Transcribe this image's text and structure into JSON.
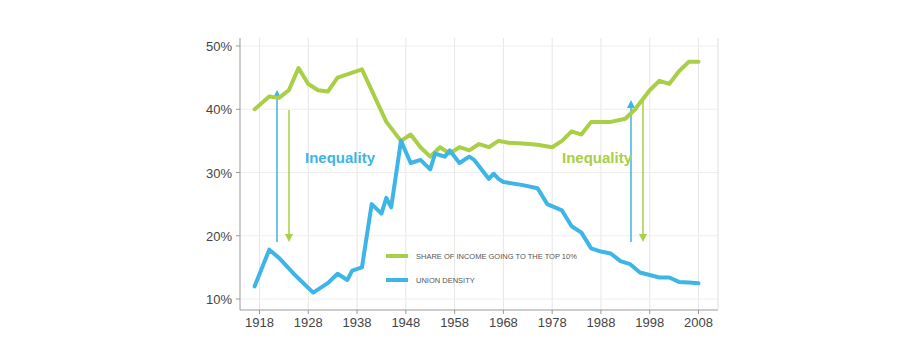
{
  "chart_data": {
    "type": "line",
    "series": [
      {
        "name": "SHARE OF INCOME GOING TO THE TOP 10%",
        "color": "#a8cf45",
        "x": [
          1917,
          1920,
          1922,
          1924,
          1926,
          1928,
          1930,
          1932,
          1934,
          1936,
          1939,
          1941,
          1944,
          1947,
          1949,
          1951,
          1953,
          1955,
          1957,
          1959,
          1961,
          1963,
          1965,
          1967,
          1969,
          1972,
          1975,
          1978,
          1980,
          1982,
          1984,
          1986,
          1990,
          1993,
          1995,
          1998,
          2000,
          2002,
          2004,
          2006,
          2008
        ],
        "values": [
          40,
          42,
          41.8,
          43,
          46.5,
          44,
          43,
          42.8,
          45,
          45.5,
          46.3,
          43,
          38,
          35,
          36,
          34,
          32.5,
          34,
          33,
          34,
          33.5,
          34.5,
          34,
          35,
          34.7,
          34.6,
          34.4,
          34,
          35,
          36.5,
          36,
          38,
          38,
          38.5,
          40,
          43,
          44.5,
          44,
          46,
          47.5,
          47.5
        ]
      },
      {
        "name": "UNION DENSITY",
        "color": "#3db5e6",
        "x": [
          1917,
          1920,
          1922,
          1925,
          1929,
          1932,
          1934,
          1936,
          1937,
          1939,
          1941,
          1943,
          1944,
          1945,
          1947,
          1949,
          1951,
          1953,
          1954,
          1956,
          1957,
          1959,
          1961,
          1962,
          1964,
          1965,
          1966,
          1967,
          1968,
          1972,
          1975,
          1977,
          1980,
          1982,
          1984,
          1986,
          1988,
          1990,
          1992,
          1994,
          1996,
          1998,
          2000,
          2002,
          2004,
          2006,
          2008
        ],
        "values": [
          12,
          17.8,
          16.5,
          14,
          11,
          12.5,
          14,
          13,
          14.5,
          15,
          25,
          23.5,
          26,
          24.5,
          35,
          31.5,
          32,
          30.5,
          33,
          32.5,
          33.5,
          31.5,
          32.5,
          32,
          30,
          29,
          29.8,
          29,
          28.5,
          28,
          27.5,
          25,
          24,
          21.5,
          20.5,
          18,
          17.5,
          17.2,
          16,
          15.5,
          14.2,
          13.8,
          13.4,
          13.4,
          12.7,
          12.6,
          12.5
        ]
      }
    ],
    "annotations": [
      "Inequality",
      "Inequality"
    ],
    "xlim": [
      1914,
      2012
    ],
    "xticks": [
      1918,
      1928,
      1938,
      1948,
      1958,
      1968,
      1978,
      1988,
      1998,
      2008
    ],
    "ylim": [
      10,
      50
    ],
    "yticks": [
      {
        "value": 10,
        "label": "10%"
      },
      {
        "value": 20,
        "label": "20%"
      },
      {
        "value": 30,
        "label": "30%"
      },
      {
        "value": 40,
        "label": "40%"
      },
      {
        "value": 50,
        "label": "50%"
      }
    ],
    "grid": true,
    "legend": "bottom"
  }
}
